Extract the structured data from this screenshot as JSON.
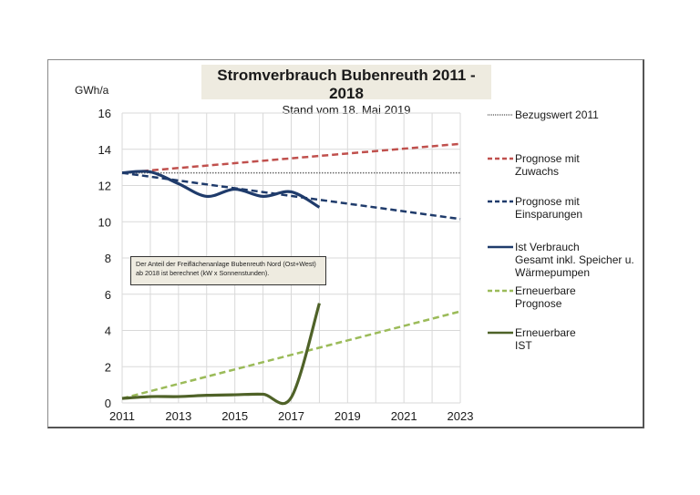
{
  "chart_data": {
    "type": "line",
    "title": "Stromverbrauch Bubenreuth 2011 - 2018",
    "subtitle": "Stand vom 18. Mai 2019",
    "xlabel": "",
    "ylabel": "GWh/a",
    "xlim": [
      2011,
      2023
    ],
    "ylim": [
      0,
      16
    ],
    "xticks": [
      "2011",
      "2013",
      "2015",
      "2017",
      "2019",
      "2021",
      "2023"
    ],
    "yticks": [
      "0",
      "2",
      "4",
      "6",
      "8",
      "10",
      "12",
      "14",
      "16"
    ],
    "grid": true,
    "legend_position": "right",
    "annotation": {
      "line1": "Der Anteil der Freiflächenanlage Bubenreuth Nord (Ost+West)",
      "line2": "ab 2018 ist berechnet  (kW x Sonnenstunden)."
    },
    "series": [
      {
        "name": "Bezugswert 2011",
        "legend": [
          "Bezugswert 2011"
        ],
        "style": "dotted",
        "color": "#6b6b6b",
        "x": [
          2011,
          2023
        ],
        "values": [
          12.7,
          12.7
        ]
      },
      {
        "name": "Prognose mit Zuwachs",
        "legend": [
          "Prognose mit",
          "Zuwachs"
        ],
        "style": "dashed",
        "color": "#c0504d",
        "x": [
          2011,
          2023
        ],
        "values": [
          12.7,
          14.3
        ]
      },
      {
        "name": "Prognose mit Einsparungen",
        "legend": [
          "Prognose mit",
          "Einsparungen"
        ],
        "style": "dashed",
        "color": "#1f3b6b",
        "x": [
          2011,
          2023
        ],
        "values": [
          12.7,
          10.15
        ]
      },
      {
        "name": "Ist Verbrauch Gesamt inkl. Speicher u. Wärmepumpen",
        "legend": [
          "Ist Verbrauch",
          "Gesamt inkl. Speicher u.",
          "Wärmepumpen"
        ],
        "style": "solid",
        "color": "#1f3b6b",
        "x": [
          2011,
          2012,
          2013,
          2014,
          2015,
          2016,
          2017,
          2018
        ],
        "values": [
          12.7,
          12.75,
          12.1,
          11.4,
          11.8,
          11.4,
          11.65,
          10.8
        ]
      },
      {
        "name": "Erneuerbare Prognose",
        "legend": [
          "Erneuerbare",
          "Prognose"
        ],
        "style": "dashed",
        "color": "#9bbb59",
        "x": [
          2011,
          2023
        ],
        "values": [
          0.25,
          5.05
        ]
      },
      {
        "name": "Erneuerbare IST",
        "legend": [
          "Erneuerbare",
          "IST"
        ],
        "style": "solid",
        "color": "#4f6228",
        "x": [
          2011,
          2012,
          2013,
          2014,
          2015,
          2016,
          2017,
          2018
        ],
        "values": [
          0.25,
          0.35,
          0.35,
          0.42,
          0.45,
          0.48,
          0.3,
          5.5
        ]
      }
    ]
  }
}
